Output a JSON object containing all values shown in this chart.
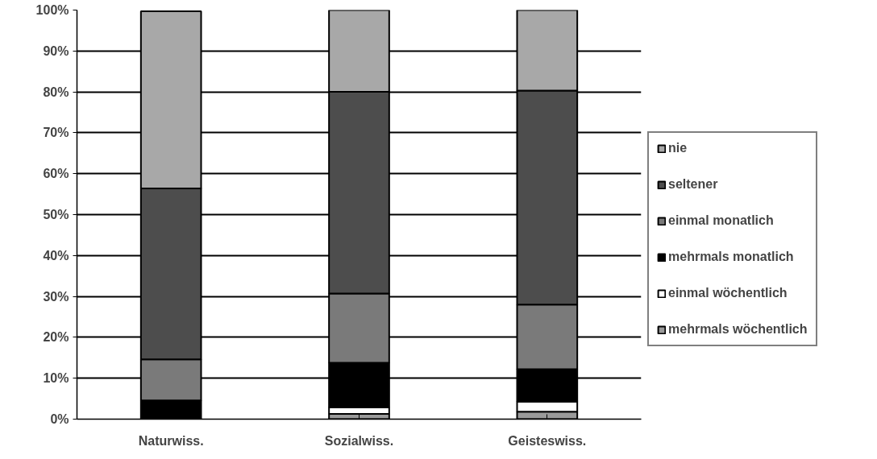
{
  "chart_data": {
    "type": "bar",
    "stacked": true,
    "categories": [
      "Naturwiss.",
      "Sozialwiss.",
      "Geisteswiss."
    ],
    "series": [
      {
        "name": "mehrmals wöchentlich",
        "color": "#9a9a9a",
        "values": [
          0,
          1.3,
          1.8
        ]
      },
      {
        "name": "einmal wöchentlich",
        "color": "#ffffff",
        "values": [
          null,
          1.6,
          2.5
        ]
      },
      {
        "name": "mehrmals monatlich",
        "color": "#000000",
        "values": [
          4.6,
          10.9,
          7.9
        ]
      },
      {
        "name": "einmal monatlich",
        "color": "#7a7a7a",
        "values": [
          10,
          16.9,
          15.8
        ]
      },
      {
        "name": "seltener",
        "color": "#4d4d4d",
        "values": [
          41.8,
          49.3,
          52.3
        ]
      },
      {
        "name": "nie",
        "color": "#a8a8a8",
        "values": [
          43.3,
          20,
          19.7
        ]
      }
    ],
    "ylim": [
      0,
      100
    ],
    "yticks": [
      {
        "value": 0,
        "label": "0%"
      },
      {
        "value": 10,
        "label": "10%"
      },
      {
        "value": 20,
        "label": "20%"
      },
      {
        "value": 30,
        "label": "30%"
      },
      {
        "value": 40,
        "label": "40%"
      },
      {
        "value": 50,
        "label": "50%"
      },
      {
        "value": 60,
        "label": "60%"
      },
      {
        "value": 70,
        "label": "70%"
      },
      {
        "value": 80,
        "label": "80%"
      },
      {
        "value": 90,
        "label": "90%"
      },
      {
        "value": 100,
        "label": "100%"
      }
    ],
    "grid": "y",
    "legend": "right"
  }
}
